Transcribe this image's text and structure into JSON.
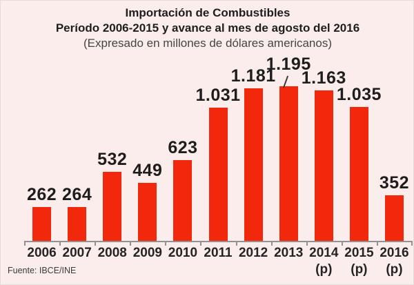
{
  "header": {
    "line1": "Importación de Combustibles",
    "line2": "Período 2006-2015 y avance al mes de agosto del 2016",
    "line3": "(Expresado en millones de dólares americanos)"
  },
  "source": "Fuente: IBCE/INE",
  "colors": {
    "background": "#FBEDEB",
    "bar": "#F2280D",
    "axis": "#919191",
    "title_text": "#1E1E1E",
    "value_text": "#1D1D1D",
    "leader_line": "#3A3A3A"
  },
  "chart_data": {
    "type": "bar",
    "title": "Importación de Combustibles",
    "subtitle": "Período 2006-2015 y avance al mes de agosto del 2016",
    "units_note": "(Expresado en millones de dólares americanos)",
    "categories": [
      "2006",
      "2007",
      "2008",
      "2009",
      "2010",
      "2011",
      "2012",
      "2013",
      "2014",
      "2015",
      "2016"
    ],
    "category_notes": [
      "",
      "",
      "",
      "",
      "",
      "",
      "",
      "",
      "(p)",
      "(p)",
      "(p)"
    ],
    "values": [
      262,
      264,
      532,
      449,
      623,
      1031,
      1181,
      1195,
      1163,
      1035,
      352
    ],
    "value_labels": [
      "262",
      "264",
      "532",
      "449",
      "623",
      "1.031",
      "1.181",
      "1.195",
      "1.163",
      "1.035",
      "352"
    ],
    "ylim": [
      0,
      1195
    ],
    "xlabel": "",
    "ylabel": "",
    "grid": false,
    "legend_position": "none",
    "annotations": {
      "leader_line_category": "2013"
    },
    "source": "Fuente: IBCE/INE"
  }
}
